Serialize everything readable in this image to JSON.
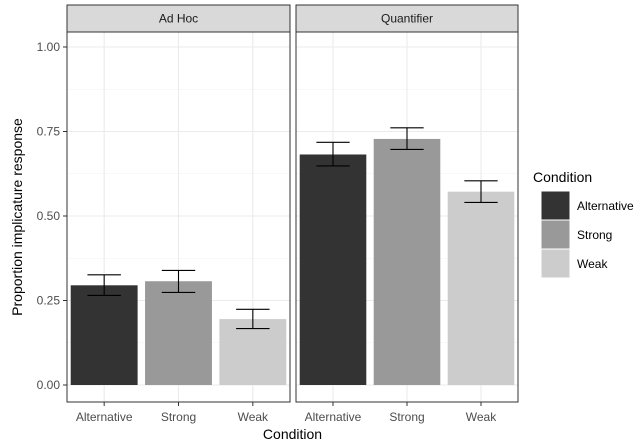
{
  "chart_data": {
    "type": "bar",
    "xlabel": "Condition",
    "ylabel": "Proportion implicature response",
    "ylim": [
      0,
      1.08
    ],
    "yticks": [
      0.0,
      0.25,
      0.5,
      0.75,
      1.0
    ],
    "ytick_labels": [
      "0.00",
      "0.25",
      "0.50",
      "0.75",
      "1.00"
    ],
    "categories": [
      "Alternative",
      "Strong",
      "Weak"
    ],
    "colors": {
      "Alternative": "#333333",
      "Strong": "#999999",
      "Weak": "#cccccc"
    },
    "grid": true,
    "legend": {
      "title": "Condition",
      "placement": "right",
      "entries": [
        "Alternative",
        "Strong",
        "Weak"
      ]
    },
    "facets": [
      {
        "label": "Ad Hoc",
        "values": [
          0.295,
          0.307,
          0.195
        ],
        "error_low": [
          0.265,
          0.274,
          0.167
        ],
        "error_high": [
          0.326,
          0.339,
          0.224
        ]
      },
      {
        "label": "Quantifier",
        "values": [
          0.682,
          0.728,
          0.572
        ],
        "error_low": [
          0.648,
          0.697,
          0.54
        ],
        "error_high": [
          0.718,
          0.761,
          0.604
        ]
      }
    ]
  }
}
